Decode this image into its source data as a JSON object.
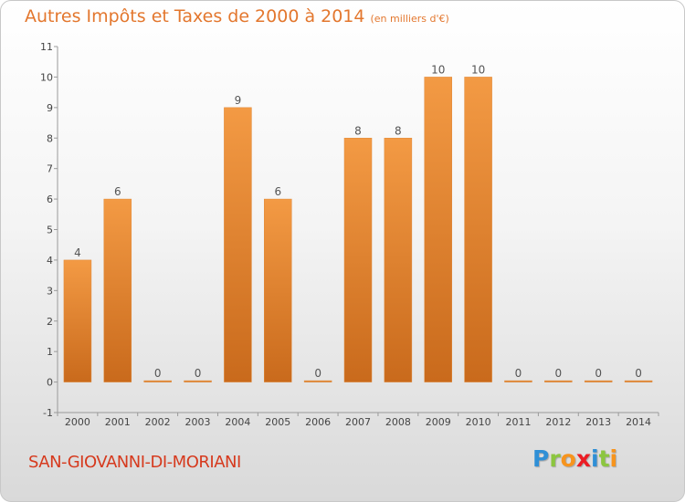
{
  "header": {
    "title": "Autres Impôts et Taxes de 2000 à 2014",
    "unit": "(en milliers d'€)"
  },
  "footer": {
    "commune": "SAN-GIOVANNI-DI-MORIANI",
    "logo": "Proxiti",
    "logo_letters": [
      {
        "char": "P",
        "color": "#2f8fd6"
      },
      {
        "char": "r",
        "color": "#8cc63f"
      },
      {
        "char": "o",
        "color": "#f7941d"
      },
      {
        "char": "x",
        "color": "#ec1c24"
      },
      {
        "char": "i",
        "color": "#2f8fd6"
      },
      {
        "char": "t",
        "color": "#8cc63f"
      },
      {
        "char": "i",
        "color": "#f7941d"
      }
    ]
  },
  "chart_data": {
    "type": "bar",
    "title": "Autres Impôts et Taxes de 2000 à 2014",
    "subtitle": "(en milliers d'€)",
    "xlabel": "",
    "ylabel": "",
    "categories": [
      "2000",
      "2001",
      "2002",
      "2003",
      "2004",
      "2005",
      "2006",
      "2007",
      "2008",
      "2009",
      "2010",
      "2011",
      "2012",
      "2013",
      "2014"
    ],
    "values": [
      4,
      6,
      0,
      0,
      9,
      6,
      0,
      8,
      8,
      10,
      10,
      0,
      0,
      0,
      0
    ],
    "data_labels": [
      "4",
      "6",
      "0",
      "0",
      "9",
      "6",
      "0",
      "8",
      "8",
      "10",
      "10",
      "0",
      "0",
      "0",
      "0"
    ],
    "ylim": [
      -1,
      11
    ],
    "yticks": [
      "-1",
      "0",
      "1",
      "2",
      "3",
      "4",
      "5",
      "6",
      "7",
      "8",
      "9",
      "10",
      "11"
    ],
    "grid": false,
    "legend": "none",
    "bar_color": "#f39a44",
    "bar_color_dark": "#c96a1c"
  }
}
